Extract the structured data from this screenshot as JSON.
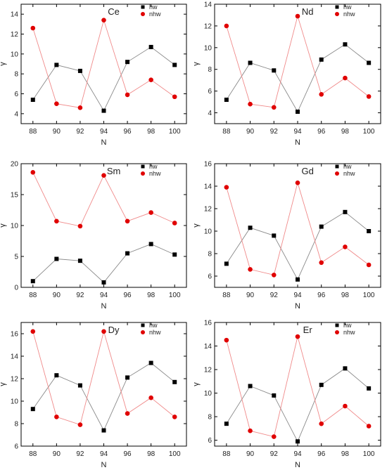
{
  "chart_data": [
    {
      "type": "line",
      "title": "Ce",
      "xlabel": "N",
      "ylabel": "γ",
      "categories": [
        88,
        90,
        92,
        94,
        96,
        98,
        100
      ],
      "ylim": [
        3,
        15
      ],
      "yticks": [
        4,
        6,
        8,
        10,
        12,
        14
      ],
      "legend_position": "top-right",
      "series": [
        {
          "name": "hw",
          "values": [
            5.4,
            8.9,
            8.3,
            4.3,
            9.2,
            10.7,
            8.9
          ],
          "color": "#000000",
          "marker": "square"
        },
        {
          "name": "nhw",
          "values": [
            12.6,
            5.0,
            4.6,
            13.4,
            5.9,
            7.4,
            5.7
          ],
          "color": "#e00000",
          "marker": "circle"
        }
      ]
    },
    {
      "type": "line",
      "title": "Nd",
      "xlabel": "N",
      "ylabel": "γ",
      "categories": [
        88,
        90,
        92,
        94,
        96,
        98,
        100
      ],
      "ylim": [
        3,
        14
      ],
      "yticks": [
        4,
        6,
        8,
        10,
        12,
        14
      ],
      "legend_position": "top-right",
      "series": [
        {
          "name": "hw",
          "values": [
            5.2,
            8.6,
            7.9,
            4.1,
            8.9,
            10.3,
            8.6
          ],
          "color": "#000000",
          "marker": "square"
        },
        {
          "name": "nhw",
          "values": [
            12.0,
            4.8,
            4.5,
            12.9,
            5.7,
            7.2,
            5.5
          ],
          "color": "#e00000",
          "marker": "circle"
        }
      ]
    },
    {
      "type": "line",
      "title": "Sm",
      "xlabel": "N",
      "ylabel": "γ",
      "categories": [
        88,
        90,
        92,
        94,
        96,
        98,
        100
      ],
      "ylim": [
        0,
        20
      ],
      "yticks": [
        0,
        5,
        10,
        15,
        20
      ],
      "legend_position": "top-right",
      "series": [
        {
          "name": "hw",
          "values": [
            1.0,
            4.6,
            4.3,
            0.8,
            5.5,
            7.0,
            5.3
          ],
          "color": "#000000",
          "marker": "square"
        },
        {
          "name": "nhw",
          "values": [
            18.6,
            10.7,
            9.9,
            18.1,
            10.7,
            12.1,
            10.4
          ],
          "color": "#e00000",
          "marker": "circle"
        }
      ]
    },
    {
      "type": "line",
      "title": "Gd",
      "xlabel": "N",
      "ylabel": "γ",
      "categories": [
        88,
        90,
        92,
        94,
        96,
        98,
        100
      ],
      "ylim": [
        5,
        16
      ],
      "yticks": [
        6,
        8,
        10,
        12,
        14,
        16
      ],
      "legend_position": "top-right",
      "series": [
        {
          "name": "hw",
          "values": [
            7.1,
            10.3,
            9.6,
            5.7,
            10.4,
            11.7,
            10.0
          ],
          "color": "#000000",
          "marker": "square"
        },
        {
          "name": "nhw",
          "values": [
            13.9,
            6.6,
            6.1,
            14.3,
            7.2,
            8.6,
            7.0
          ],
          "color": "#e00000",
          "marker": "circle"
        }
      ]
    },
    {
      "type": "line",
      "title": "Dy",
      "xlabel": "N",
      "ylabel": "γ",
      "categories": [
        88,
        90,
        92,
        94,
        96,
        98,
        100
      ],
      "ylim": [
        6,
        17
      ],
      "yticks": [
        6,
        8,
        10,
        12,
        14,
        16
      ],
      "legend_position": "top-right",
      "series": [
        {
          "name": "hw",
          "values": [
            9.3,
            12.3,
            11.4,
            7.4,
            12.1,
            13.4,
            11.7
          ],
          "color": "#000000",
          "marker": "square"
        },
        {
          "name": "nhw",
          "values": [
            16.2,
            8.6,
            7.9,
            16.2,
            8.9,
            10.3,
            8.6
          ],
          "color": "#e00000",
          "marker": "circle"
        }
      ]
    },
    {
      "type": "line",
      "title": "Er",
      "xlabel": "N",
      "ylabel": "γ",
      "categories": [
        88,
        90,
        92,
        94,
        96,
        98,
        100
      ],
      "ylim": [
        5.5,
        16
      ],
      "yticks": [
        6,
        8,
        10,
        12,
        14,
        16
      ],
      "legend_position": "top-right",
      "series": [
        {
          "name": "hw",
          "values": [
            7.4,
            10.6,
            9.8,
            5.9,
            10.7,
            12.1,
            10.4
          ],
          "color": "#000000",
          "marker": "square"
        },
        {
          "name": "nhw",
          "values": [
            14.5,
            6.8,
            6.3,
            14.8,
            7.4,
            8.9,
            7.2
          ],
          "color": "#e00000",
          "marker": "circle"
        }
      ]
    }
  ]
}
